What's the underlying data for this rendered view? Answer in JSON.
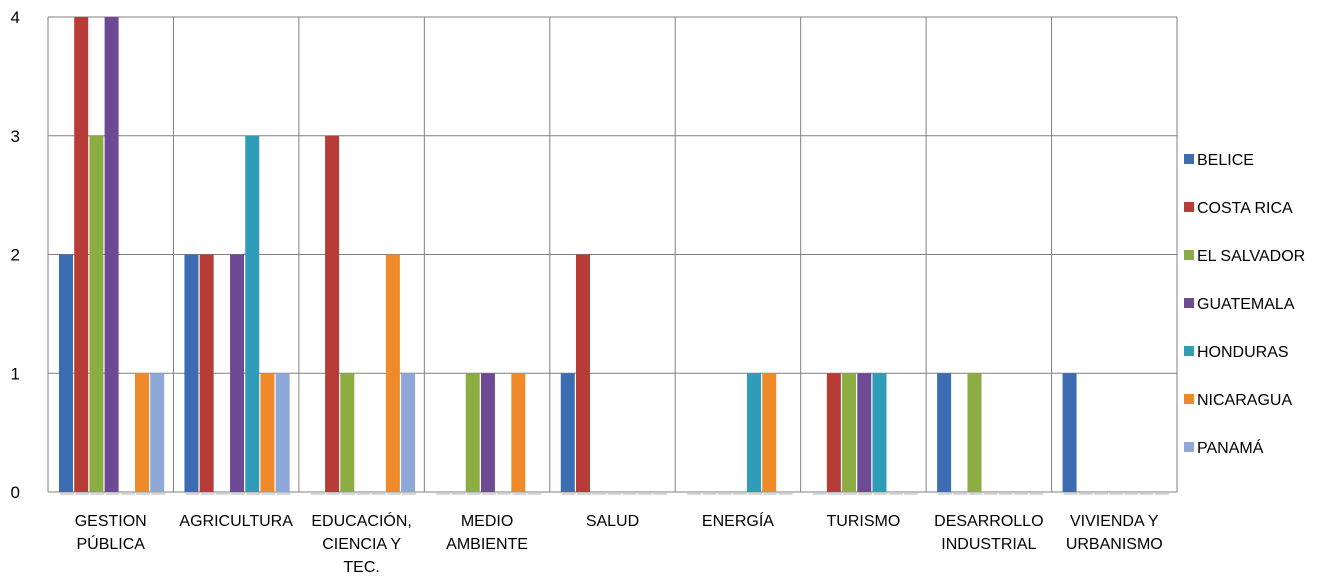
{
  "chart_data": {
    "type": "bar",
    "title": "",
    "xlabel": "",
    "ylabel": "",
    "ylim": [
      0,
      4
    ],
    "yticks": [
      "0",
      "1",
      "2",
      "3",
      "4"
    ],
    "grid": true,
    "legend_position": "right",
    "categories": [
      [
        "GESTION",
        "PÚBLICA"
      ],
      [
        "AGRICULTURA"
      ],
      [
        "EDUCACIÓN,",
        "CIENCIA Y",
        "TEC."
      ],
      [
        "MEDIO",
        "AMBIENTE"
      ],
      [
        "SALUD"
      ],
      [
        "ENERGÍA"
      ],
      [
        "TURISMO"
      ],
      [
        "DESARROLLO",
        "INDUSTRIAL"
      ],
      [
        "VIVIENDA Y",
        "URBANISMO"
      ]
    ],
    "series": [
      {
        "name": "BELICE",
        "color": "#3c6db3",
        "values": [
          2,
          2,
          0,
          0,
          1,
          0,
          0,
          1,
          1
        ]
      },
      {
        "name": "COSTA RICA",
        "color": "#b73b37",
        "values": [
          4,
          2,
          3,
          0,
          2,
          0,
          1,
          0,
          0
        ]
      },
      {
        "name": "EL SALVADOR",
        "color": "#8bad42",
        "values": [
          3,
          0,
          1,
          1,
          0,
          0,
          1,
          1,
          0
        ]
      },
      {
        "name": "GUATEMALA",
        "color": "#6e4a94",
        "values": [
          4,
          2,
          0,
          1,
          0,
          0,
          1,
          0,
          0
        ]
      },
      {
        "name": "HONDURAS",
        "color": "#2f9db8",
        "values": [
          0,
          3,
          0,
          0,
          0,
          1,
          1,
          0,
          0
        ]
      },
      {
        "name": "NICARAGUA",
        "color": "#ef8a2a",
        "values": [
          1,
          1,
          2,
          1,
          0,
          1,
          0,
          0,
          0
        ]
      },
      {
        "name": "PANAMÁ",
        "color": "#8ea9d9",
        "values": [
          1,
          1,
          1,
          0,
          0,
          0,
          0,
          0,
          0
        ]
      }
    ]
  }
}
